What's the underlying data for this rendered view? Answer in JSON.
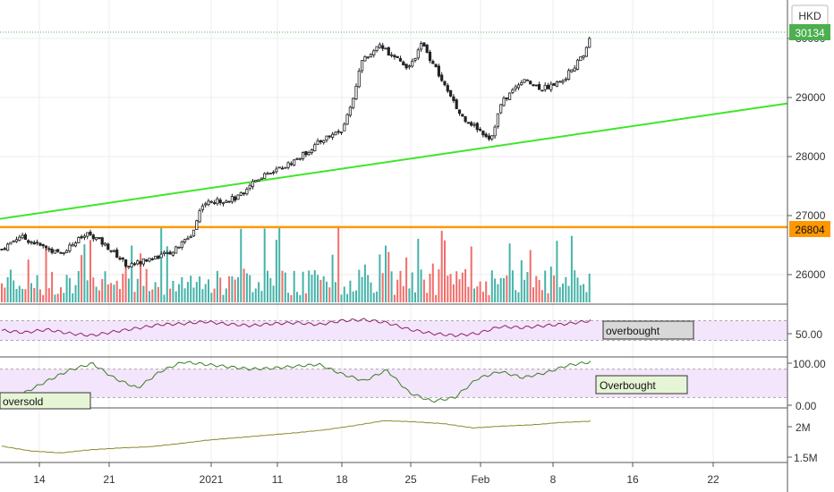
{
  "currency": "HKD",
  "price_labels": {
    "last": "30134",
    "support": "26804"
  },
  "price_axis_ticks": [
    "26000",
    "27000",
    "28000",
    "29000",
    "30000"
  ],
  "date_ticks": [
    "14",
    "21",
    "2021",
    "11",
    "18",
    "25",
    "Feb",
    "8",
    "16",
    "22"
  ],
  "rsi": {
    "axis_label": "50.00",
    "box_label": "overbought"
  },
  "stoch": {
    "axis_top": "100.00",
    "axis_bottom": "0.00",
    "box_upper": "Overbought",
    "box_lower": "oversold"
  },
  "obv": {
    "axis_labels": [
      "2M",
      "1.5M"
    ]
  },
  "colors": {
    "up": "#26a69a",
    "down": "#ef5350",
    "candle": "#222222",
    "trendline": "#3ee62a",
    "support_line": "#ff9800",
    "rsi_line": "#8e2461",
    "rsi_band": "#f3e5fb",
    "stoch_line": "#3b7d23",
    "obv_line": "#8d8a2e"
  },
  "chart_data": [
    {
      "type": "candlestick",
      "title": "",
      "unit": "HKD",
      "ylim": [
        25500,
        30500
      ],
      "y_ticks": [
        26000,
        27000,
        28000,
        29000,
        30000
      ],
      "x_tick_labels": [
        "14",
        "21",
        "2021",
        "11",
        "18",
        "25",
        "Feb",
        "8",
        "16",
        "22"
      ],
      "close_path": [
        [
          "Dec 8",
          26600
        ],
        [
          "Dec 10",
          26400
        ],
        [
          "Dec 12",
          26650
        ],
        [
          "Dec 14",
          26500
        ],
        [
          "Dec 16",
          26350
        ],
        [
          "Dec 18",
          26600
        ],
        [
          "Dec 19",
          26700
        ],
        [
          "Dec 21",
          26450
        ],
        [
          "Dec 23",
          26150
        ],
        [
          "Dec 24",
          26200
        ],
        [
          "Dec 28",
          26400
        ],
        [
          "Dec 30",
          26700
        ],
        [
          "Dec 31",
          27200
        ],
        [
          "Jan 4",
          27300
        ],
        [
          "Jan 6",
          27550
        ],
        [
          "Jan 8",
          27700
        ],
        [
          "Jan 11",
          27850
        ],
        [
          "Jan 13",
          28050
        ],
        [
          "Jan 15",
          28300
        ],
        [
          "Jan 17",
          28450
        ],
        [
          "Jan 18",
          28900
        ],
        [
          "Jan 19",
          29600
        ],
        [
          "Jan 21",
          29900
        ],
        [
          "Jan 22",
          29700
        ],
        [
          "Jan 24",
          29500
        ],
        [
          "Jan 25",
          29950
        ],
        [
          "Jan 26",
          29650
        ],
        [
          "Jan 28",
          29000
        ],
        [
          "Jan 29",
          28700
        ],
        [
          "Feb 1",
          28300
        ],
        [
          "Feb 2",
          28900
        ],
        [
          "Feb 4",
          29300
        ],
        [
          "Feb 6",
          29150
        ],
        [
          "Feb 8",
          29300
        ],
        [
          "Feb 10",
          29700
        ],
        [
          "Feb 11",
          30134
        ]
      ],
      "last_price": 30134,
      "support_level": 26804,
      "trendline": [
        [
          "Dec 8",
          26830
        ],
        [
          "Feb 22",
          28900
        ]
      ],
      "volume": "bars colored by candle direction"
    },
    {
      "type": "line",
      "name": "RSI",
      "band": [
        30,
        70
      ],
      "y_tick_labels": [
        "50.00"
      ],
      "annotation": "overbought",
      "values": [
        50,
        46,
        52,
        44,
        40,
        48,
        55,
        62,
        64,
        68,
        63,
        60,
        64,
        66,
        62,
        70,
        72,
        66,
        52,
        44,
        40,
        44,
        58,
        56,
        60,
        64,
        70
      ]
    },
    {
      "type": "line",
      "name": "Stochastic",
      "band": [
        20,
        80
      ],
      "y_tick_labels": [
        "100.00",
        "0.00"
      ],
      "annotations": [
        "Overbought",
        "oversold"
      ],
      "values": [
        15,
        30,
        55,
        78,
        92,
        60,
        40,
        75,
        95,
        90,
        85,
        80,
        82,
        86,
        90,
        70,
        55,
        78,
        30,
        12,
        20,
        60,
        75,
        62,
        72,
        88,
        95
      ]
    },
    {
      "type": "line",
      "name": "OBV",
      "y_tick_labels": [
        "2M",
        "1.5M"
      ],
      "values": [
        1.68,
        1.6,
        1.57,
        1.62,
        1.65,
        1.67,
        1.72,
        1.78,
        1.82,
        1.86,
        1.9,
        1.95,
        2.02,
        2.1,
        2.08,
        2.05,
        1.98,
        2.01,
        2.03,
        2.07,
        2.09
      ]
    }
  ]
}
